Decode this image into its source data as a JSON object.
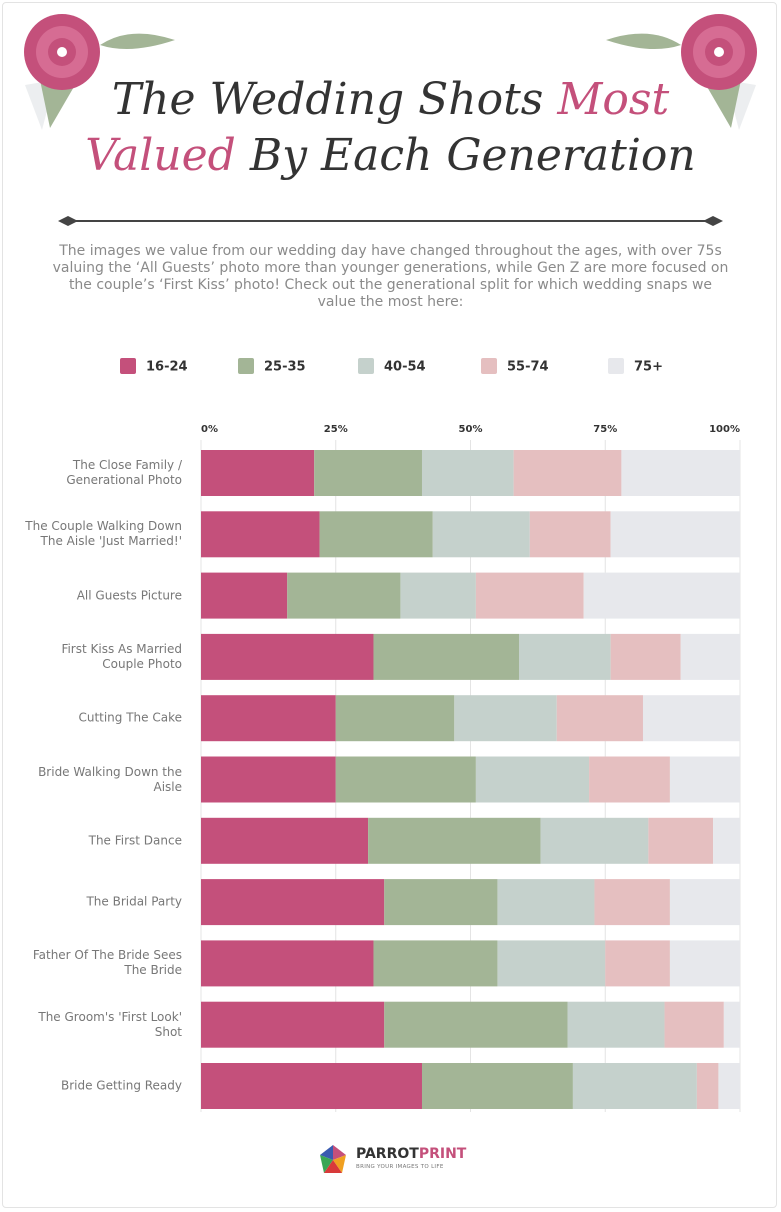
{
  "header": {
    "title_parts": [
      {
        "text": "The Wedding Shots",
        "highlight": false
      },
      {
        "text": "Most",
        "highlight": true
      },
      {
        "text": "Valued",
        "highlight": true
      },
      {
        "text": "By Each Generation",
        "highlight": false
      }
    ],
    "intro": "The images we value from our wedding day have changed throughout the ages, with over 75s valuing the ‘All Guests’ photo more than younger generations, while Gen Z are more focused on the couple’s ‘First Kiss’ photo! Check out the generational split for which wedding snaps we value the most here:"
  },
  "chart_data": {
    "type": "stacked_bar_horizontal",
    "categories": [
      "The Close Family / Generational Photo",
      "The Couple Walking Down The Aisle 'Just Married!'",
      "All Guests Picture",
      "First Kiss As Married Couple Photo",
      "Cutting The Cake",
      "Bride Walking Down the Aisle",
      "The First Dance",
      "The Bridal Party",
      "Father Of The Bride Sees The Bride",
      "The Groom's 'First Look' Shot",
      "Bride Getting Ready"
    ],
    "series": [
      {
        "name": "16-24",
        "color": "#c4507b",
        "values": [
          21,
          22,
          16,
          32,
          25,
          25,
          31,
          34,
          32,
          34,
          41
        ]
      },
      {
        "name": "25-35",
        "color": "#a3b596",
        "values": [
          20,
          21,
          21,
          27,
          22,
          26,
          32,
          21,
          23,
          34,
          28
        ]
      },
      {
        "name": "40-54",
        "color": "#c5d1cc",
        "values": [
          17,
          18,
          14,
          17,
          19,
          21,
          20,
          18,
          20,
          18,
          23
        ]
      },
      {
        "name": "55-74",
        "color": "#e5bfc0",
        "values": [
          20,
          15,
          20,
          13,
          16,
          15,
          12,
          14,
          12,
          11,
          4
        ]
      },
      {
        "name": "75+",
        "color": "#e7e8ec",
        "values": [
          22,
          24,
          29,
          11,
          18,
          13,
          5,
          13,
          13,
          3,
          4
        ]
      }
    ],
    "xlim": [
      0,
      100
    ],
    "xticks": [
      {
        "value": 0,
        "label": "0%"
      },
      {
        "value": 25,
        "label": "25%"
      },
      {
        "value": 50,
        "label": "50%"
      },
      {
        "value": 75,
        "label": "75%"
      },
      {
        "value": 100,
        "label": "100%"
      }
    ],
    "grid": true,
    "legend": "top"
  },
  "footer": {
    "brand_parts": [
      "PARROT",
      "PRINT"
    ],
    "tagline": "BRING YOUR IMAGES TO LIFE"
  }
}
